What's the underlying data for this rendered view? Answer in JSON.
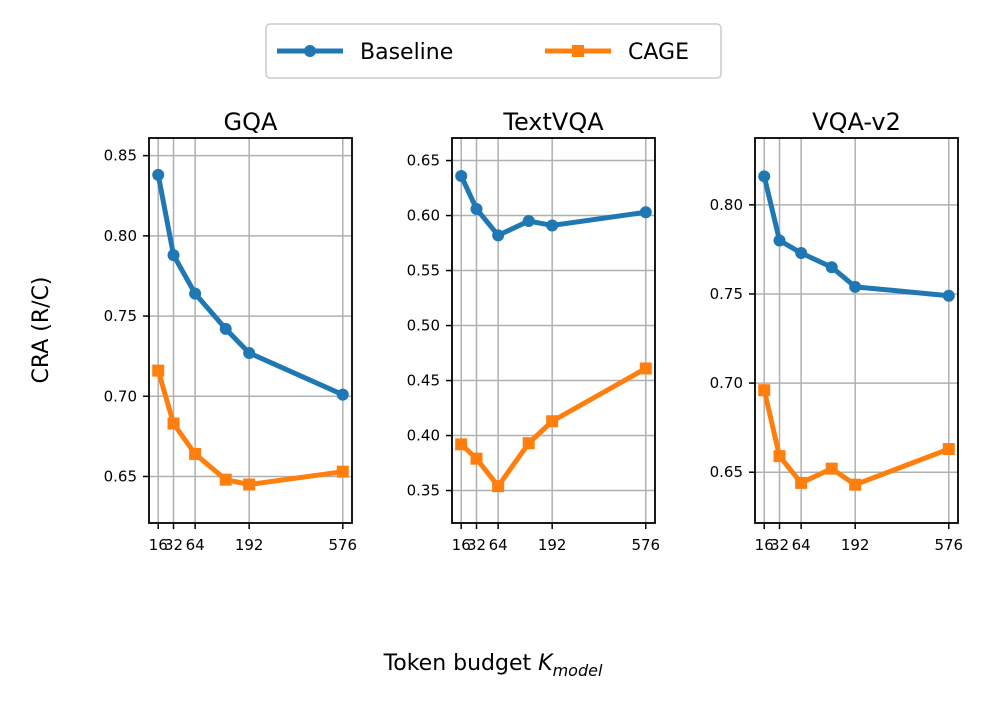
{
  "legend": {
    "items": [
      {
        "name": "Baseline",
        "color": "#1f77b4",
        "marker": "circle"
      },
      {
        "name": "CAGE",
        "color": "#ff7f0e",
        "marker": "square"
      }
    ]
  },
  "axes": {
    "ylabel": "CRA (R/C)",
    "xlabel_main": "Token budget ",
    "xlabel_var": "K",
    "xlabel_sub": "model"
  },
  "chart_data": [
    {
      "type": "line",
      "title": "GQA",
      "x": [
        16,
        32,
        64,
        128,
        192,
        576
      ],
      "xticks": [
        16,
        32,
        64,
        192,
        576
      ],
      "xtick_labels": [
        "16",
        "32",
        "64",
        "192",
        "576"
      ],
      "yticks": [
        0.65,
        0.7,
        0.75,
        0.8,
        0.85
      ],
      "ytick_labels": [
        "0.65",
        "0.70",
        "0.75",
        "0.80",
        "0.85"
      ],
      "ylim": [
        0.621,
        0.861
      ],
      "grid": true,
      "series": [
        {
          "name": "Baseline",
          "values": [
            0.838,
            0.788,
            0.764,
            0.742,
            0.727,
            0.701
          ]
        },
        {
          "name": "CAGE",
          "values": [
            0.716,
            0.683,
            0.664,
            0.648,
            0.645,
            0.653
          ]
        }
      ]
    },
    {
      "type": "line",
      "title": "TextVQA",
      "x": [
        16,
        32,
        64,
        128,
        192,
        576
      ],
      "xticks": [
        16,
        32,
        64,
        192,
        576
      ],
      "xtick_labels": [
        "16",
        "32",
        "64",
        "192",
        "576"
      ],
      "yticks": [
        0.35,
        0.4,
        0.45,
        0.5,
        0.55,
        0.6,
        0.65
      ],
      "ytick_labels": [
        "0.35",
        "0.40",
        "0.45",
        "0.50",
        "0.55",
        "0.60",
        "0.65"
      ],
      "ylim": [
        0.3205,
        0.6705
      ],
      "grid": true,
      "series": [
        {
          "name": "Baseline",
          "values": [
            0.636,
            0.606,
            0.582,
            0.595,
            0.591,
            0.603
          ]
        },
        {
          "name": "CAGE",
          "values": [
            0.392,
            0.379,
            0.354,
            0.393,
            0.413,
            0.461
          ]
        }
      ]
    },
    {
      "type": "line",
      "title": "VQA-v2",
      "x": [
        16,
        32,
        64,
        128,
        192,
        576
      ],
      "xticks": [
        16,
        32,
        64,
        192,
        576
      ],
      "xtick_labels": [
        "16",
        "32",
        "64",
        "192",
        "576"
      ],
      "yticks": [
        0.65,
        0.7,
        0.75,
        0.8
      ],
      "ytick_labels": [
        "0.65",
        "0.70",
        "0.75",
        "0.80"
      ],
      "ylim": [
        0.6215,
        0.8375
      ],
      "grid": true,
      "series": [
        {
          "name": "Baseline",
          "values": [
            0.816,
            0.78,
            0.773,
            0.765,
            0.754,
            0.749
          ]
        },
        {
          "name": "CAGE",
          "values": [
            0.696,
            0.659,
            0.644,
            0.652,
            0.643,
            0.663
          ]
        }
      ]
    }
  ]
}
